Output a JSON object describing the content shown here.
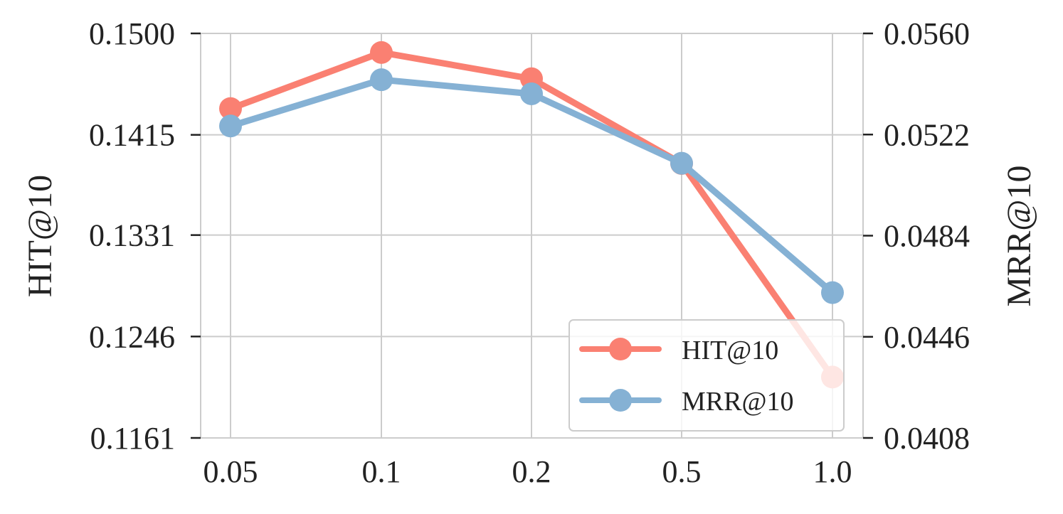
{
  "chart_data": {
    "type": "line",
    "categories": [
      "0.05",
      "0.1",
      "0.2",
      "0.5",
      "1.0"
    ],
    "series": [
      {
        "name": "HIT@10",
        "axis": "left",
        "color": "#fa8072",
        "values": [
          0.1437,
          0.1484,
          0.1462,
          0.1391,
          0.1212
        ]
      },
      {
        "name": "MRR@10",
        "axis": "right",
        "color": "#85b1d4",
        "values": [
          0.05252,
          0.05426,
          0.05373,
          0.05112,
          0.04626
        ]
      }
    ],
    "y_left": {
      "label": "HIT@10",
      "ylim": [
        0.1161,
        0.15
      ],
      "ticks": [
        "0.1161",
        "0.1246",
        "0.1331",
        "0.1415",
        "0.1500"
      ]
    },
    "y_right": {
      "label": "MRR@10",
      "ylim": [
        0.0408,
        0.056
      ],
      "ticks": [
        "0.0408",
        "0.0446",
        "0.0484",
        "0.0522",
        "0.0560"
      ]
    },
    "grid": true,
    "legend": {
      "position": "lower-right",
      "entries": [
        "HIT@10",
        "MRR@10"
      ]
    }
  }
}
